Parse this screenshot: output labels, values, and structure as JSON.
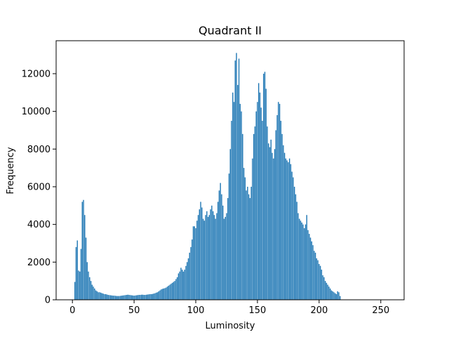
{
  "chart_data": {
    "type": "bar",
    "title": "Quadrant II",
    "xlabel": "Luminosity",
    "ylabel": "Frequency",
    "color": "#1f77b4",
    "xlim": [
      -13.2,
      268.9
    ],
    "ylim": [
      0,
      13750
    ],
    "xticks": [
      0,
      50,
      100,
      150,
      200,
      250
    ],
    "yticks": [
      0,
      2000,
      4000,
      6000,
      8000,
      10000,
      12000
    ],
    "x": [
      0,
      1,
      2,
      3,
      4,
      5,
      6,
      7,
      8,
      9,
      10,
      11,
      12,
      13,
      14,
      15,
      16,
      17,
      18,
      19,
      20,
      21,
      22,
      23,
      24,
      25,
      26,
      27,
      28,
      29,
      30,
      31,
      32,
      33,
      34,
      35,
      36,
      37,
      38,
      39,
      40,
      41,
      42,
      43,
      44,
      45,
      46,
      47,
      48,
      49,
      50,
      51,
      52,
      53,
      54,
      55,
      56,
      57,
      58,
      59,
      60,
      61,
      62,
      63,
      64,
      65,
      66,
      67,
      68,
      69,
      70,
      71,
      72,
      73,
      74,
      75,
      76,
      77,
      78,
      79,
      80,
      81,
      82,
      83,
      84,
      85,
      86,
      87,
      88,
      89,
      90,
      91,
      92,
      93,
      94,
      95,
      96,
      97,
      98,
      99,
      100,
      101,
      102,
      103,
      104,
      105,
      106,
      107,
      108,
      109,
      110,
      111,
      112,
      113,
      114,
      115,
      116,
      117,
      118,
      119,
      120,
      121,
      122,
      123,
      124,
      125,
      126,
      127,
      128,
      129,
      130,
      131,
      132,
      133,
      134,
      135,
      136,
      137,
      138,
      139,
      140,
      141,
      142,
      143,
      144,
      145,
      146,
      147,
      148,
      149,
      150,
      151,
      152,
      153,
      154,
      155,
      156,
      157,
      158,
      159,
      160,
      161,
      162,
      163,
      164,
      165,
      166,
      167,
      168,
      169,
      170,
      171,
      172,
      173,
      174,
      175,
      176,
      177,
      178,
      179,
      180,
      181,
      182,
      183,
      184,
      185,
      186,
      187,
      188,
      189,
      190,
      191,
      192,
      193,
      194,
      195,
      196,
      197,
      198,
      199,
      200,
      201,
      202,
      203,
      204,
      205,
      206,
      207,
      208,
      209,
      210,
      211,
      212,
      213,
      214,
      215,
      216,
      217,
      218,
      219,
      220,
      221,
      222,
      223,
      224,
      225,
      226,
      227,
      228,
      229,
      230,
      231,
      232,
      233,
      234,
      235,
      236,
      237,
      238,
      239,
      240,
      241,
      242,
      243,
      244,
      245,
      246,
      247,
      248,
      249,
      250,
      251,
      252,
      253,
      254,
      255
    ],
    "values": [
      0,
      0,
      950,
      2800,
      3150,
      1550,
      1500,
      2700,
      5200,
      5300,
      4500,
      3300,
      2000,
      1500,
      1200,
      1000,
      800,
      700,
      600,
      500,
      450,
      400,
      400,
      380,
      350,
      330,
      300,
      300,
      280,
      260,
      250,
      240,
      230,
      220,
      220,
      210,
      200,
      200,
      200,
      210,
      220,
      230,
      240,
      250,
      260,
      270,
      260,
      250,
      240,
      230,
      220,
      230,
      240,
      250,
      260,
      260,
      270,
      270,
      260,
      260,
      270,
      280,
      290,
      300,
      300,
      310,
      330,
      350,
      380,
      400,
      450,
      500,
      550,
      580,
      600,
      620,
      650,
      700,
      750,
      800,
      850,
      900,
      950,
      1000,
      1100,
      1200,
      1400,
      1500,
      1700,
      1600,
      1500,
      1600,
      1800,
      2000,
      2200,
      2500,
      2800,
      3200,
      3900,
      3900,
      3800,
      4200,
      4500,
      4800,
      5200,
      4900,
      4300,
      4200,
      4500,
      4700,
      4400,
      4500,
      4800,
      5000,
      4700,
      4500,
      4300,
      4600,
      5200,
      5800,
      6200,
      5600,
      5000,
      4300,
      4400,
      4600,
      5400,
      6700,
      8000,
      9500,
      11000,
      10500,
      12700,
      13100,
      11400,
      12800,
      10400,
      10000,
      8800,
      7000,
      6500,
      5800,
      6000,
      5600,
      5400,
      6000,
      7500,
      8800,
      9200,
      10000,
      10500,
      11500,
      11000,
      10200,
      9500,
      12000,
      12100,
      11200,
      9200,
      8300,
      8100,
      8500,
      7800,
      7500,
      8000,
      9000,
      9800,
      10500,
      10400,
      9500,
      8800,
      8200,
      7800,
      7500,
      7400,
      7300,
      7500,
      7200,
      6800,
      6500,
      6000,
      5600,
      5200,
      4600,
      4300,
      4200,
      4100,
      4000,
      3800,
      4000,
      4500,
      3700,
      3500,
      3300,
      3100,
      2900,
      2600,
      2500,
      2200,
      2100,
      1900,
      1800,
      1600,
      1300,
      1200,
      1000,
      900,
      800,
      700,
      600,
      500,
      450,
      400,
      350,
      300,
      450,
      400,
      200,
      0,
      0,
      0,
      0,
      0,
      0,
      0,
      0,
      0,
      0,
      0,
      0,
      0,
      0,
      0,
      0,
      0,
      0,
      0,
      0,
      0,
      0,
      0,
      0,
      0,
      0,
      0,
      0,
      0,
      0,
      0,
      0,
      0,
      0,
      0,
      0,
      0,
      0
    ]
  }
}
